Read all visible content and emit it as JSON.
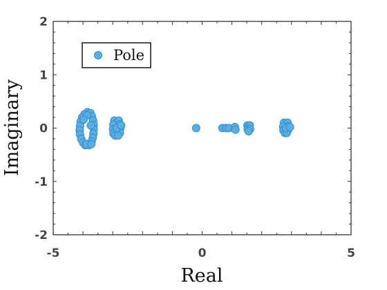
{
  "chart_data": {
    "type": "scatter",
    "xlabel": "Real",
    "ylabel": "Imaginary",
    "xlim": [
      -5,
      5
    ],
    "ylim": [
      -2,
      2
    ],
    "x_ticks": [
      {
        "value": -5,
        "label": "-5"
      },
      {
        "value": 0,
        "label": "0"
      },
      {
        "value": 5,
        "label": "5"
      }
    ],
    "y_ticks": [
      {
        "value": -2,
        "label": "-2"
      },
      {
        "value": -1,
        "label": "-1"
      },
      {
        "value": 0,
        "label": "0"
      },
      {
        "value": 1,
        "label": "1"
      },
      {
        "value": 2,
        "label": "2"
      }
    ],
    "grid": false,
    "legend": {
      "position": "top-left",
      "entries": [
        "Pole"
      ]
    },
    "series": [
      {
        "name": "Pole",
        "color": "#5aaee0",
        "edge_color": "#2f8fd1",
        "points": [
          {
            "x": -3.85,
            "y": 0.3
          },
          {
            "x": -3.75,
            "y": 0.28
          },
          {
            "x": -3.95,
            "y": 0.26
          },
          {
            "x": -4.03,
            "y": 0.2
          },
          {
            "x": -3.7,
            "y": 0.22
          },
          {
            "x": -4.08,
            "y": 0.12
          },
          {
            "x": -3.66,
            "y": 0.14
          },
          {
            "x": -4.1,
            "y": 0.04
          },
          {
            "x": -3.64,
            "y": 0.06
          },
          {
            "x": -4.11,
            "y": -0.04
          },
          {
            "x": -3.64,
            "y": -0.02
          },
          {
            "x": -4.1,
            "y": -0.12
          },
          {
            "x": -3.65,
            "y": -0.1
          },
          {
            "x": -4.06,
            "y": -0.2
          },
          {
            "x": -3.67,
            "y": -0.18
          },
          {
            "x": -4.0,
            "y": -0.27
          },
          {
            "x": -3.71,
            "y": -0.25
          },
          {
            "x": -3.92,
            "y": -0.32
          },
          {
            "x": -3.8,
            "y": -0.32
          },
          {
            "x": -3.86,
            "y": 0.24
          },
          {
            "x": -3.88,
            "y": -0.3
          },
          {
            "x": -3.72,
            "y": -0.3
          },
          {
            "x": -3.98,
            "y": 0.16
          },
          {
            "x": -3.74,
            "y": 0.05
          },
          {
            "x": -2.95,
            "y": 0.14
          },
          {
            "x": -2.8,
            "y": 0.14
          },
          {
            "x": -2.98,
            "y": 0.06
          },
          {
            "x": -2.76,
            "y": 0.07
          },
          {
            "x": -2.99,
            "y": -0.02
          },
          {
            "x": -2.75,
            "y": -0.01
          },
          {
            "x": -2.98,
            "y": -0.1
          },
          {
            "x": -2.76,
            "y": -0.09
          },
          {
            "x": -2.92,
            "y": -0.14
          },
          {
            "x": -2.82,
            "y": -0.14
          },
          {
            "x": -2.87,
            "y": 0.0
          },
          {
            "x": -2.72,
            "y": 0.05
          },
          {
            "x": -0.2,
            "y": 0.0
          },
          {
            "x": 0.68,
            "y": 0.0
          },
          {
            "x": 0.8,
            "y": 0.0
          },
          {
            "x": 0.9,
            "y": 0.0
          },
          {
            "x": 1.1,
            "y": 0.02
          },
          {
            "x": 1.12,
            "y": -0.03
          },
          {
            "x": 1.52,
            "y": 0.05
          },
          {
            "x": 1.6,
            "y": 0.05
          },
          {
            "x": 1.53,
            "y": -0.02
          },
          {
            "x": 1.61,
            "y": -0.02
          },
          {
            "x": 1.56,
            "y": -0.06
          },
          {
            "x": 2.75,
            "y": 0.1
          },
          {
            "x": 2.87,
            "y": 0.1
          },
          {
            "x": 2.72,
            "y": 0.03
          },
          {
            "x": 2.89,
            "y": 0.03
          },
          {
            "x": 2.73,
            "y": -0.04
          },
          {
            "x": 2.88,
            "y": -0.04
          },
          {
            "x": 2.78,
            "y": -0.09
          },
          {
            "x": 2.84,
            "y": -0.09
          },
          {
            "x": 2.81,
            "y": 0.0
          },
          {
            "x": 2.95,
            "y": 0.02
          }
        ]
      }
    ]
  }
}
